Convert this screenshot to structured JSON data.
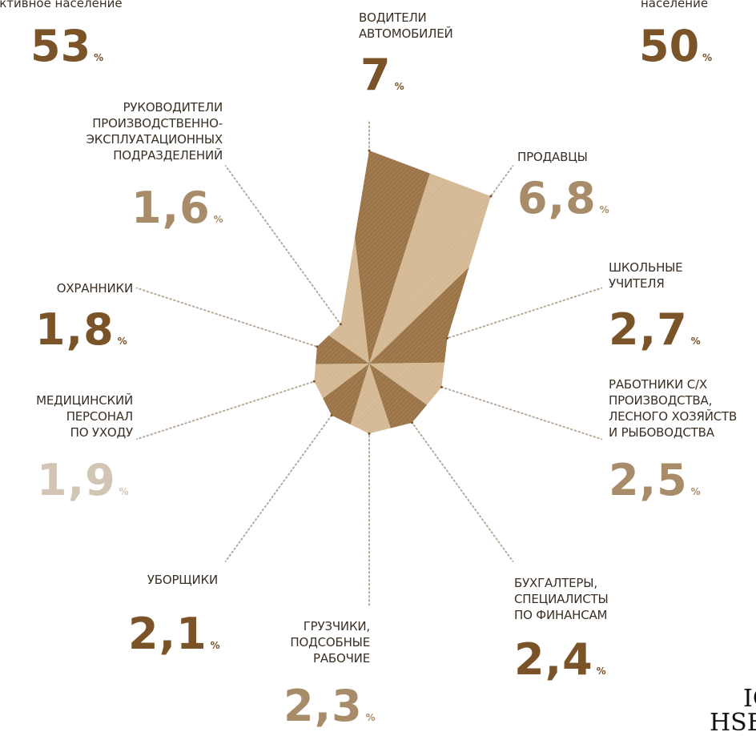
{
  "header": {
    "left_label": "активное население",
    "left_value": "53",
    "right_label": "население",
    "right_value": "50",
    "pct": "%"
  },
  "chart_data": {
    "type": "radar",
    "categories": [
      "ВОДИТЕЛИ\nАВТОМОБИЛЕЙ",
      "ПРОДАВЦЫ",
      "ШКОЛЬНЫЕ\nУЧИТЕЛЯ",
      "РАБОТНИКИ С/Х\nПРОИЗВОДСТВА,\nЛЕСНОГО ХОЗЯЙСТВ\nИ РЫБОВОДСТВА",
      "БУХГАЛТЕРЫ,\nСПЕЦИАЛИСТЫ\nПО ФИНАНСАМ",
      "ГРУЗЧИКИ,\nПОДСОБНЫЕ\nРАБОЧИЕ",
      "УБОРЩИКИ",
      "МЕДИЦИНСКИЙ\nПЕРСОНАЛ\nПО УХОДУ",
      "ОХРАННИКИ",
      "РУКОВОДИТЕЛИ\nПРОИЗВОДСТВЕННО-\nЭКСПЛУАТАЦИОННЫХ\nПОДРАЗДЕЛЕНИЙ"
    ],
    "value_labels": [
      "7",
      "6,8",
      "2,7",
      "2,5",
      "2,4",
      "2,3",
      "2,1",
      "1,9",
      "1,8",
      "1,6"
    ],
    "values": [
      7,
      6.8,
      2.7,
      2.5,
      2.4,
      2.3,
      2.1,
      1.9,
      1.8,
      1.6
    ],
    "unit": "%",
    "colors": {
      "dark": "#7a5428",
      "mid": "#a88c6a",
      "light": "#d2c5b3",
      "fill_dark": "#9b7447",
      "fill_light": "#d4b994",
      "axis": "#b8aa98"
    }
  },
  "logo": {
    "line1": "IC",
    "line2": "HSE"
  }
}
